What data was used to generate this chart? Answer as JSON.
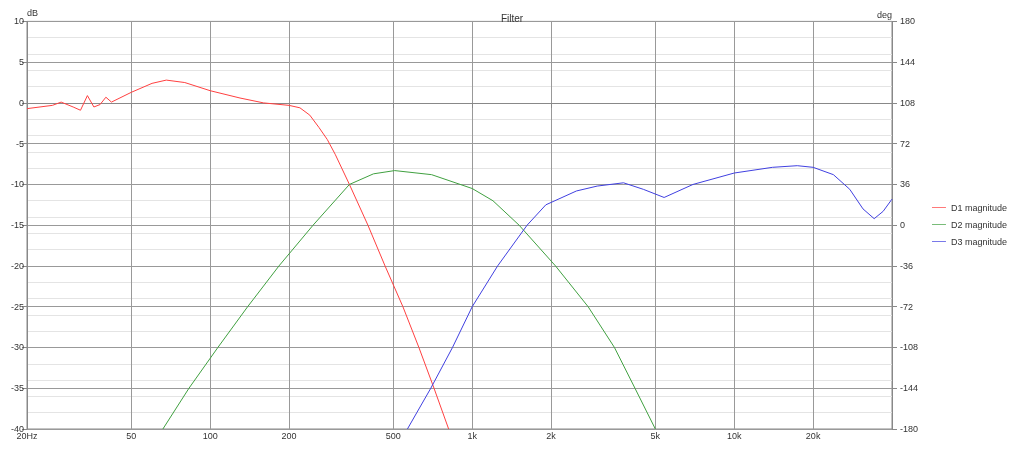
{
  "chart_data": {
    "type": "line",
    "title": "Filter",
    "ylabel": "dB",
    "y2label": "deg",
    "log": "x",
    "grid": true,
    "legend": "right",
    "marker": "none",
    "line_style": "solid",
    "xlim": [
      20,
      40000
    ],
    "ylim": [
      -40,
      10
    ],
    "y2lim": [
      -180,
      180
    ],
    "xticks": [
      {
        "value": 20,
        "label": "20Hz"
      },
      50,
      100,
      200,
      500,
      {
        "value": 1000,
        "label": "1k"
      },
      {
        "value": 2000,
        "label": "2k"
      },
      {
        "value": 5000,
        "label": "5k"
      },
      {
        "value": 10000,
        "label": "10k"
      },
      {
        "value": 20000,
        "label": "20k"
      }
    ],
    "yticks": [
      -40,
      -35,
      -30,
      -25,
      -20,
      -15,
      -10,
      -5,
      0,
      5,
      10
    ],
    "y2ticks": [
      -180,
      -144,
      -108,
      -72,
      -36,
      0,
      36,
      72,
      108,
      144,
      180
    ],
    "series": [
      {
        "name": "D1 magnitude",
        "color": "#ff4040",
        "x": [
          20,
          25,
          27,
          30,
          32,
          34,
          36,
          38,
          40,
          42,
          50,
          60,
          68,
          80,
          100,
          130,
          160,
          200,
          220,
          240,
          260,
          280,
          300,
          340,
          400,
          465,
          544,
          626,
          715,
          813
        ],
        "values": [
          -0.7,
          -0.3,
          0.1,
          -0.5,
          -0.9,
          0.9,
          -0.5,
          -0.2,
          0.7,
          0.1,
          1.3,
          2.4,
          2.8,
          2.5,
          1.5,
          0.6,
          0,
          -0.3,
          -0.6,
          -1.5,
          -3,
          -4.5,
          -6.3,
          -10,
          -15,
          -20,
          -25,
          -30,
          -35,
          -40
        ]
      },
      {
        "name": "D2 magnitude",
        "color": "#40a040",
        "x": [
          66,
          83,
          107,
          139,
          183,
          247,
          340,
          420,
          506,
          700,
          1000,
          1200,
          1510,
          2080,
          2770,
          3490,
          4180,
          5000
        ],
        "values": [
          -40,
          -35,
          -30,
          -25,
          -20,
          -15,
          -10,
          -8.7,
          -8.3,
          -8.8,
          -10.5,
          -12,
          -15,
          -20,
          -25,
          -30,
          -35,
          -40
        ]
      },
      {
        "name": "D3 magnitude",
        "color": "#4040e0",
        "x": [
          566,
          695,
          841,
          1000,
          1250,
          1620,
          1910,
          2500,
          3000,
          3780,
          4500,
          5400,
          6960,
          10000,
          14000,
          17400,
          20000,
          23900,
          27600,
          31000,
          34200,
          37000,
          40000
        ],
        "values": [
          -40,
          -35,
          -30,
          -25,
          -20,
          -15,
          -12.5,
          -10.8,
          -10.2,
          -9.8,
          -10.6,
          -11.6,
          -10,
          -8.6,
          -7.9,
          -7.7,
          -7.9,
          -8.8,
          -10.6,
          -13,
          -14.2,
          -13.3,
          -11.8
        ]
      }
    ]
  }
}
